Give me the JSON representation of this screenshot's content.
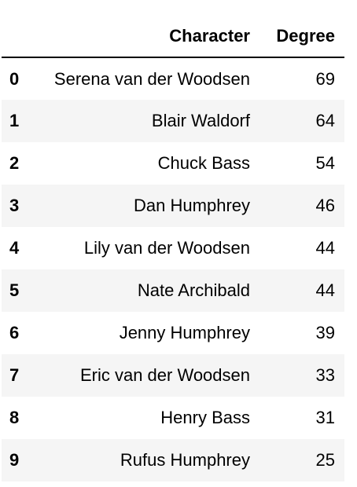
{
  "table": {
    "columns": [
      "Character",
      "Degree"
    ],
    "rows": [
      {
        "index": "0",
        "character": "Serena van der Woodsen",
        "degree": "69"
      },
      {
        "index": "1",
        "character": "Blair Waldorf",
        "degree": "64"
      },
      {
        "index": "2",
        "character": "Chuck Bass",
        "degree": "54"
      },
      {
        "index": "3",
        "character": "Dan Humphrey",
        "degree": "46"
      },
      {
        "index": "4",
        "character": "Lily van der Woodsen",
        "degree": "44"
      },
      {
        "index": "5",
        "character": "Nate Archibald",
        "degree": "44"
      },
      {
        "index": "6",
        "character": "Jenny Humphrey",
        "degree": "39"
      },
      {
        "index": "7",
        "character": "Eric van der Woodsen",
        "degree": "33"
      },
      {
        "index": "8",
        "character": "Henry Bass",
        "degree": "31"
      },
      {
        "index": "9",
        "character": "Rufus Humphrey",
        "degree": "25"
      }
    ]
  },
  "colors": {
    "stripe": "#f5f5f5",
    "header_rule": "#000000"
  }
}
